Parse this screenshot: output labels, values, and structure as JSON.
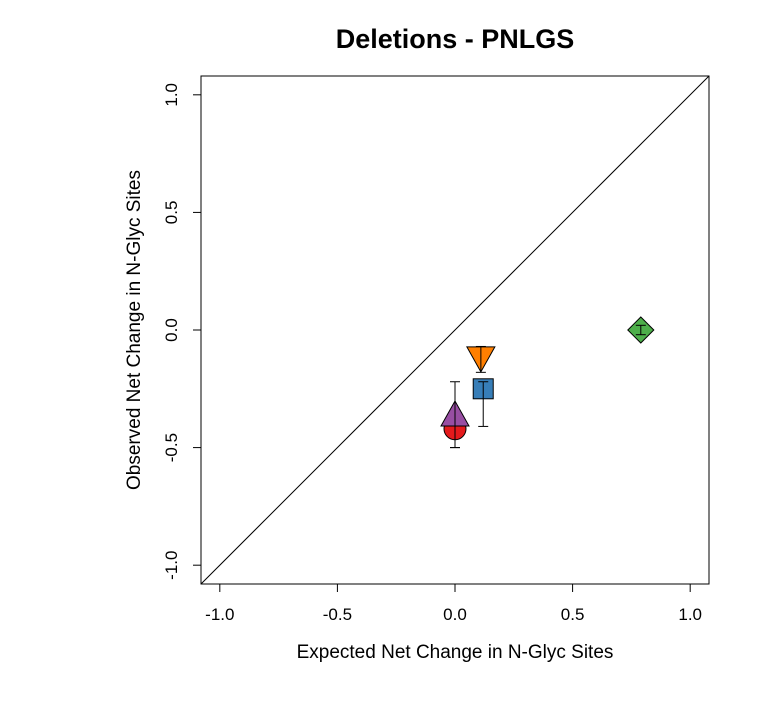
{
  "chart_data": {
    "type": "scatter",
    "title": "Deletions - PNLGS",
    "xlabel": "Expected Net Change in N-Glyc Sites",
    "ylabel": "Observed Net Change in N-Glyc Sites",
    "xlim": [
      -1.08,
      1.08
    ],
    "ylim": [
      -1.08,
      1.08
    ],
    "xticks": [
      -1.0,
      -0.5,
      0.0,
      0.5,
      1.0
    ],
    "xtick_labels": [
      "-1.0",
      "-0.5",
      "0.0",
      "0.5",
      "1.0"
    ],
    "yticks": [
      -1.0,
      -0.5,
      0.0,
      0.5,
      1.0
    ],
    "ytick_labels": [
      "-1.0",
      "-0.5",
      "0.0",
      "0.5",
      "1.0"
    ],
    "grid": false,
    "reference_line": "y = x",
    "points": [
      {
        "x": 0.0,
        "y": -0.42,
        "err_low": -0.5,
        "err_high": -0.34,
        "shape": "circle",
        "color": "#e41a1c"
      },
      {
        "x": 0.0,
        "y": -0.37,
        "err_low": -0.5,
        "err_high": -0.22,
        "shape": "triangle-up",
        "color": "#984ea3"
      },
      {
        "x": 0.12,
        "y": -0.25,
        "err_low": -0.41,
        "err_high": -0.22,
        "shape": "square",
        "color": "#377eb8"
      },
      {
        "x": 0.11,
        "y": -0.11,
        "err_low": -0.18,
        "err_high": -0.07,
        "shape": "triangle-down",
        "color": "#ff7f00"
      },
      {
        "x": 0.79,
        "y": 0.0,
        "err_low": -0.02,
        "err_high": 0.02,
        "shape": "diamond",
        "color": "#4daf4a"
      }
    ]
  }
}
